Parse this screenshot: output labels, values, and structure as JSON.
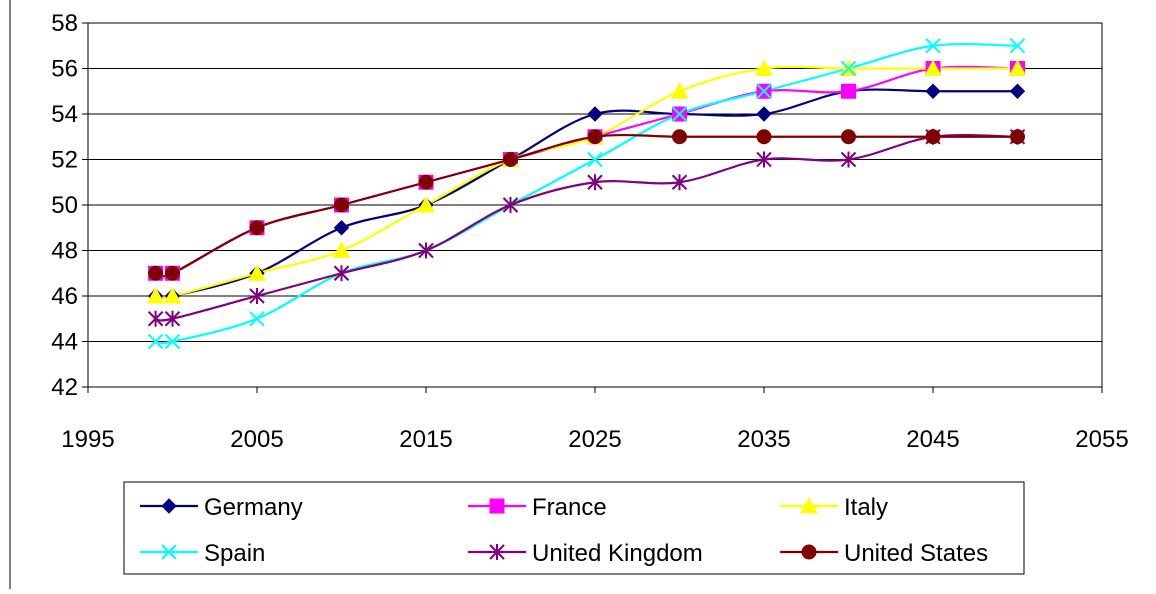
{
  "chart_data": {
    "type": "line",
    "title": "",
    "xlabel": "",
    "ylabel": "",
    "xlim": [
      1995,
      2055
    ],
    "ylim": [
      42,
      58
    ],
    "x_ticks": [
      1995,
      2005,
      2015,
      2025,
      2035,
      2045,
      2055
    ],
    "y_ticks": [
      42,
      44,
      46,
      48,
      50,
      52,
      54,
      56,
      58
    ],
    "grid": {
      "horizontal": true,
      "vertical": false
    },
    "legend_placement": "bottom",
    "x": [
      1999,
      2000,
      2005,
      2010,
      2015,
      2020,
      2025,
      2030,
      2035,
      2040,
      2045,
      2050
    ],
    "series": [
      {
        "name": "Germany",
        "color": "#000080",
        "marker": "diamond",
        "values": [
          46,
          46,
          47,
          49,
          50,
          52,
          54,
          54,
          54,
          55,
          55,
          55
        ]
      },
      {
        "name": "France",
        "color": "#FF00FF",
        "marker": "square",
        "values": [
          47,
          47,
          49,
          50,
          51,
          52,
          53,
          54,
          55,
          55,
          56,
          56
        ]
      },
      {
        "name": "Italy",
        "color": "#FFFF00",
        "marker": "triangle",
        "values": [
          46,
          46,
          47,
          48,
          50,
          52,
          53,
          55,
          56,
          56,
          56,
          56
        ]
      },
      {
        "name": "Spain",
        "color": "#00FFFF",
        "marker": "x",
        "values": [
          44,
          44,
          45,
          47,
          48,
          50,
          52,
          54,
          55,
          56,
          57,
          57
        ]
      },
      {
        "name": "United Kingdom",
        "color": "#800080",
        "marker": "star",
        "values": [
          45,
          45,
          46,
          47,
          48,
          50,
          51,
          51,
          52,
          52,
          53,
          53
        ]
      },
      {
        "name": "United States",
        "color": "#800000",
        "marker": "circle",
        "values": [
          47,
          47,
          49,
          50,
          51,
          52,
          53,
          53,
          53,
          53,
          53,
          53
        ]
      }
    ]
  }
}
